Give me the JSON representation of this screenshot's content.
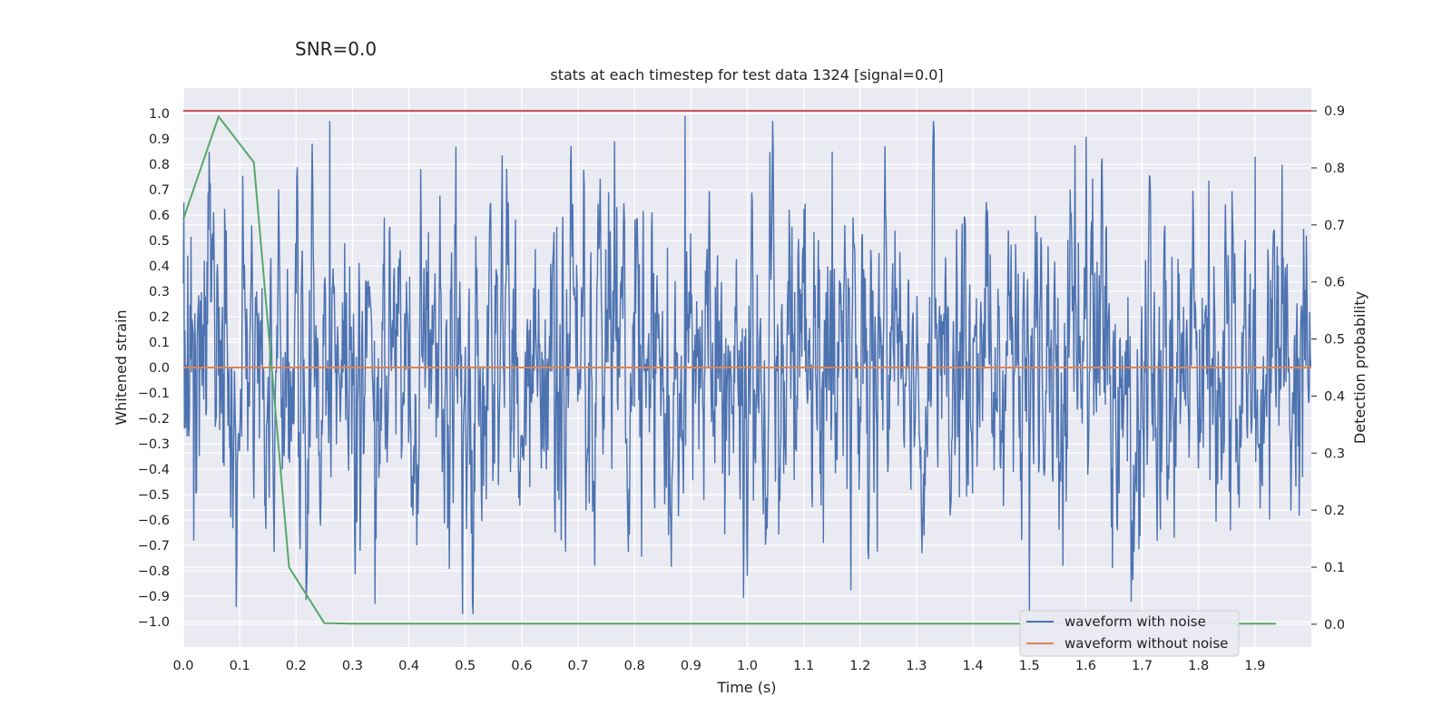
{
  "suptitle": "SNR=0.0",
  "chart_data": {
    "type": "line",
    "title": "stats at each timestep for test data 1324 [signal=0.0]",
    "xlabel": "Time (s)",
    "ylabel": "Whitened strain",
    "y2label": "Detection probability",
    "xlim": [
      0.0,
      2.0
    ],
    "ylim": [
      -1.1,
      1.1
    ],
    "y2lim": [
      -0.04,
      0.94
    ],
    "xticks": [
      "0.0",
      "0.1",
      "0.2",
      "0.3",
      "0.4",
      "0.5",
      "0.6",
      "0.7",
      "0.8",
      "0.9",
      "1.0",
      "1.1",
      "1.2",
      "1.3",
      "1.4",
      "1.5",
      "1.6",
      "1.7",
      "1.8",
      "1.9"
    ],
    "yticks": [
      "1.0",
      "0.9",
      "0.8",
      "0.7",
      "0.6",
      "0.5",
      "0.4",
      "0.3",
      "0.2",
      "0.1",
      "0.0",
      "−0.1",
      "−0.2",
      "−0.3",
      "−0.4",
      "−0.5",
      "−0.6",
      "−0.7",
      "−0.8",
      "−0.9",
      "−1.0"
    ],
    "y2ticks": [
      "0.9",
      "0.8",
      "0.7",
      "0.6",
      "0.5",
      "0.4",
      "0.3",
      "0.2",
      "0.1",
      "0.0"
    ],
    "grid": true,
    "legend_position": "lower-right",
    "series": [
      {
        "name": "waveform with noise",
        "axis": "left",
        "color": "#4c72b0",
        "sampling": "dense noise, ~2048 samples over 2 s, amplitude within approx ±1.0",
        "notable_peaks": [
          [
            0.89,
            0.99
          ],
          [
            0.26,
            0.97
          ],
          [
            1.5,
            -0.97
          ],
          [
            0.34,
            -0.93
          ],
          [
            1.15,
            0.85
          ],
          [
            1.9,
            0.83
          ]
        ]
      },
      {
        "name": "waveform without noise",
        "axis": "left",
        "color": "#dd8452",
        "x": [
          0.0,
          2.0
        ],
        "y": [
          0.0,
          0.0
        ]
      },
      {
        "axis": "right",
        "color": "#55a868",
        "x": [
          0.0,
          0.0625,
          0.125,
          0.1875,
          0.25,
          0.3,
          1.9375
        ],
        "y": [
          0.71,
          0.89,
          0.81,
          0.1,
          0.002,
          0.001,
          0.001
        ]
      },
      {
        "axis": "right",
        "color": "#c44e52",
        "x": [
          0.0,
          2.0
        ],
        "y": [
          0.9,
          0.9
        ]
      }
    ]
  }
}
